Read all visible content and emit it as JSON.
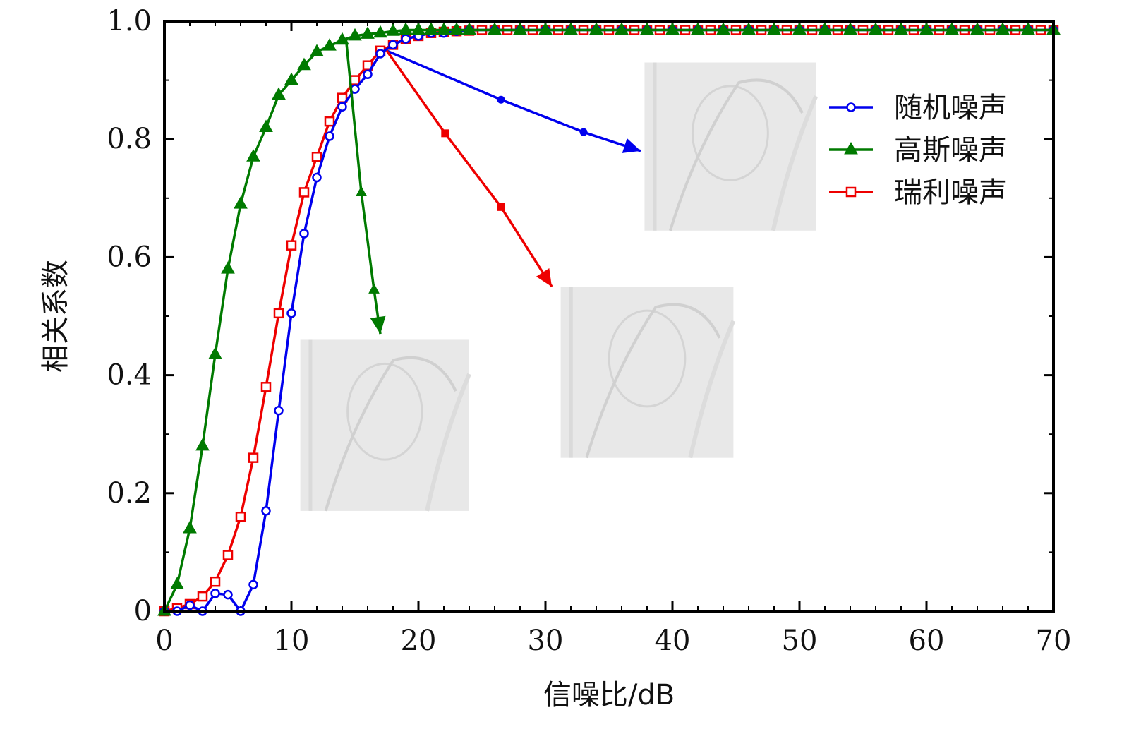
{
  "chart_data": {
    "type": "line",
    "title": "",
    "xlabel": "信噪比/dB",
    "ylabel": "相关系数",
    "xlim": [
      0,
      70
    ],
    "ylim": [
      0,
      1.0
    ],
    "xticks": [
      0,
      10,
      20,
      30,
      40,
      50,
      60,
      70
    ],
    "xtick_labels": [
      "0",
      "10",
      "20",
      "30",
      "40",
      "50",
      "60",
      "70"
    ],
    "yticks": [
      0,
      0.2,
      0.4,
      0.6,
      0.8,
      1.0
    ],
    "ytick_labels": [
      "0",
      "0.2",
      "0.4",
      "0.6",
      "0.8",
      "1.0"
    ],
    "legend_position": "top-right",
    "series": [
      {
        "name": "随机噪声",
        "color": "#0000ee",
        "marker": "circle",
        "x": [
          0,
          1,
          2,
          3,
          4,
          5,
          6,
          7,
          8,
          9,
          10,
          11,
          12,
          13,
          14,
          15,
          16,
          17,
          18,
          19,
          20,
          21,
          22,
          23,
          24,
          26,
          28,
          30,
          32,
          34,
          36,
          38,
          40,
          42,
          44,
          46,
          48,
          50,
          52,
          54,
          56,
          58,
          60,
          62,
          64,
          66,
          68,
          70
        ],
        "y": [
          0.0,
          0.0,
          0.01,
          0.0,
          0.03,
          0.028,
          0.0,
          0.045,
          0.17,
          0.34,
          0.505,
          0.64,
          0.735,
          0.805,
          0.855,
          0.885,
          0.91,
          0.945,
          0.96,
          0.97,
          0.975,
          0.98,
          0.98,
          0.983,
          0.985,
          0.985,
          0.985,
          0.985,
          0.985,
          0.985,
          0.985,
          0.985,
          0.985,
          0.985,
          0.985,
          0.985,
          0.985,
          0.985,
          0.985,
          0.985,
          0.985,
          0.985,
          0.985,
          0.985,
          0.985,
          0.985,
          0.985,
          0.985
        ]
      },
      {
        "name": "高斯噪声",
        "color": "#007a00",
        "marker": "triangle",
        "x": [
          0,
          1,
          2,
          3,
          4,
          5,
          6,
          7,
          8,
          9,
          10,
          11,
          12,
          13,
          14,
          15,
          16,
          17,
          18,
          19,
          20,
          21,
          22,
          23,
          24,
          26,
          28,
          30,
          32,
          34,
          36,
          38,
          40,
          42,
          44,
          46,
          48,
          50,
          52,
          54,
          56,
          58,
          60,
          62,
          64,
          66,
          68,
          70
        ],
        "y": [
          0.0,
          0.045,
          0.14,
          0.28,
          0.435,
          0.58,
          0.69,
          0.77,
          0.82,
          0.875,
          0.9,
          0.925,
          0.948,
          0.958,
          0.968,
          0.975,
          0.978,
          0.98,
          0.983,
          0.985,
          0.985,
          0.985,
          0.985,
          0.985,
          0.985,
          0.985,
          0.985,
          0.985,
          0.985,
          0.985,
          0.985,
          0.985,
          0.985,
          0.985,
          0.985,
          0.985,
          0.985,
          0.985,
          0.985,
          0.985,
          0.985,
          0.985,
          0.985,
          0.985,
          0.985,
          0.985,
          0.985,
          0.985
        ]
      },
      {
        "name": "瑞利噪声",
        "color": "#ee0000",
        "marker": "square",
        "x": [
          0,
          1,
          2,
          3,
          4,
          5,
          6,
          7,
          8,
          9,
          10,
          11,
          12,
          13,
          14,
          15,
          16,
          17,
          18,
          19,
          20,
          21,
          22,
          23,
          24,
          25,
          26,
          27,
          28,
          29,
          30,
          31,
          32,
          33,
          34,
          35,
          36,
          37,
          38,
          39,
          40,
          41,
          42,
          43,
          44,
          45,
          46,
          47,
          48,
          49,
          50,
          51,
          52,
          53,
          54,
          55,
          56,
          57,
          58,
          59,
          60,
          61,
          62,
          63,
          64,
          65,
          66,
          67,
          68,
          69,
          70
        ],
        "y": [
          0.0,
          0.005,
          0.012,
          0.025,
          0.05,
          0.095,
          0.16,
          0.26,
          0.38,
          0.505,
          0.62,
          0.71,
          0.77,
          0.83,
          0.87,
          0.9,
          0.925,
          0.95,
          0.96,
          0.97,
          0.975,
          0.98,
          0.982,
          0.983,
          0.984,
          0.985,
          0.985,
          0.985,
          0.985,
          0.985,
          0.985,
          0.985,
          0.985,
          0.985,
          0.985,
          0.985,
          0.985,
          0.985,
          0.985,
          0.985,
          0.985,
          0.985,
          0.985,
          0.985,
          0.985,
          0.985,
          0.985,
          0.985,
          0.985,
          0.985,
          0.985,
          0.985,
          0.985,
          0.985,
          0.985,
          0.985,
          0.985,
          0.985,
          0.985,
          0.985,
          0.985,
          0.985,
          0.985,
          0.985,
          0.985,
          0.985,
          0.985,
          0.985,
          0.985,
          0.985,
          0.985
        ]
      },
      {
        "name": "高斯噪声 (callout)",
        "color": "#007a00",
        "marker": "triangle-small",
        "x": [
          14.3,
          15.5,
          16.5,
          17.0
        ],
        "y": [
          0.97,
          0.71,
          0.545,
          0.47
        ]
      },
      {
        "name": "随机噪声 (callout)",
        "color": "#0000ee",
        "marker": "dot",
        "x": [
          17.5,
          26.5,
          33.0,
          37.5
        ],
        "y": [
          0.95,
          0.867,
          0.812,
          0.78
        ]
      },
      {
        "name": "瑞利噪声 (callout)",
        "color": "#ee0000",
        "marker": "square-small",
        "x": [
          17.5,
          22.1,
          26.5,
          30.5
        ],
        "y": [
          0.95,
          0.81,
          0.685,
          0.55
        ]
      }
    ],
    "insets": [
      {
        "name": "gaussian-noise-recon",
        "x_range": [
          10.7,
          24.0
        ],
        "y_range": [
          0.17,
          0.46
        ]
      },
      {
        "name": "rayleigh-noise-recon",
        "x_range": [
          31.2,
          44.8
        ],
        "y_range": [
          0.26,
          0.55
        ]
      },
      {
        "name": "random-noise-recon",
        "x_range": [
          37.8,
          51.3
        ],
        "y_range": [
          0.645,
          0.93
        ]
      }
    ]
  },
  "style": {
    "axis_color": "#000000",
    "inset_bg": "#e8e8e8"
  }
}
